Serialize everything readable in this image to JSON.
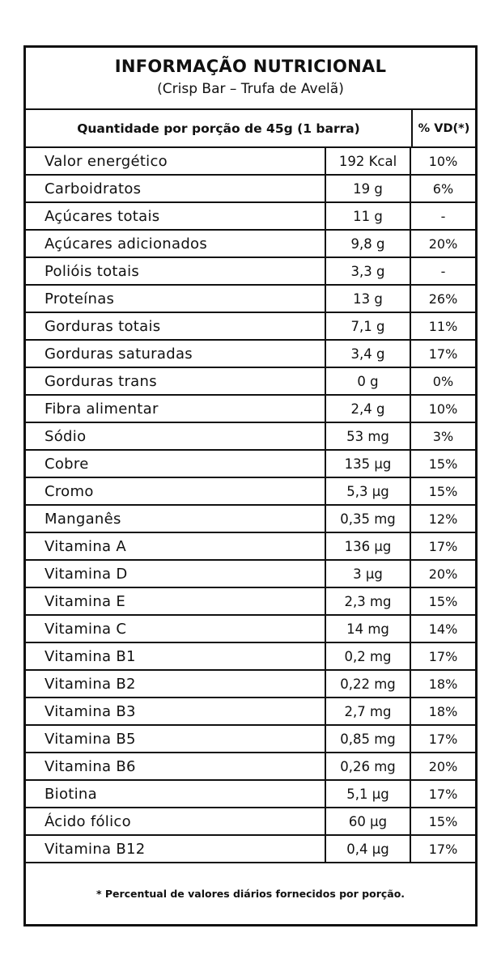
{
  "title": "INFORMAÇÃO NUTRICIONAL",
  "subtitle": "(Crisp Bar – Trufa de Avelã)",
  "header": {
    "serving": "Quantidade por porção de 45g (1 barra)",
    "vd": "% VD(*)"
  },
  "rows": [
    {
      "name": "Valor energético",
      "qty": "192 Kcal",
      "vd": "10%"
    },
    {
      "name": "Carboidratos",
      "qty": "19 g",
      "vd": "6%"
    },
    {
      "name": "Açúcares totais",
      "qty": "11 g",
      "vd": "-"
    },
    {
      "name": "Açúcares adicionados",
      "qty": "9,8 g",
      "vd": "20%"
    },
    {
      "name": "Polióis totais",
      "qty": "3,3 g",
      "vd": "-"
    },
    {
      "name": "Proteínas",
      "qty": "13 g",
      "vd": "26%"
    },
    {
      "name": "Gorduras totais",
      "qty": "7,1 g",
      "vd": "11%"
    },
    {
      "name": "Gorduras saturadas",
      "qty": "3,4 g",
      "vd": "17%"
    },
    {
      "name": "Gorduras trans",
      "qty": "0 g",
      "vd": "0%"
    },
    {
      "name": "Fibra alimentar",
      "qty": "2,4 g",
      "vd": "10%"
    },
    {
      "name": "Sódio",
      "qty": "53 mg",
      "vd": "3%"
    },
    {
      "name": "Cobre",
      "qty": "135 µg",
      "vd": "15%"
    },
    {
      "name": "Cromo",
      "qty": "5,3 µg",
      "vd": "15%"
    },
    {
      "name": "Manganês",
      "qty": "0,35 mg",
      "vd": "12%"
    },
    {
      "name": "Vitamina A",
      "qty": "136 µg",
      "vd": "17%"
    },
    {
      "name": "Vitamina D",
      "qty": "3 µg",
      "vd": "20%"
    },
    {
      "name": "Vitamina E",
      "qty": "2,3 mg",
      "vd": "15%"
    },
    {
      "name": "Vitamina C",
      "qty": "14 mg",
      "vd": "14%"
    },
    {
      "name": "Vitamina B1",
      "qty": "0,2 mg",
      "vd": "17%"
    },
    {
      "name": "Vitamina B2",
      "qty": "0,22 mg",
      "vd": "18%"
    },
    {
      "name": "Vitamina B3",
      "qty": "2,7 mg",
      "vd": "18%"
    },
    {
      "name": "Vitamina B5",
      "qty": "0,85 mg",
      "vd": "17%"
    },
    {
      "name": "Vitamina B6",
      "qty": "0,26 mg",
      "vd": "20%"
    },
    {
      "name": "Biotina",
      "qty": "5,1 µg",
      "vd": "17%"
    },
    {
      "name": "Ácido fólico",
      "qty": "60 µg",
      "vd": "15%"
    },
    {
      "name": "Vitamina B12",
      "qty": "0,4 µg",
      "vd": "17%"
    }
  ],
  "footnote": "* Percentual de valores diários fornecidos por porção."
}
